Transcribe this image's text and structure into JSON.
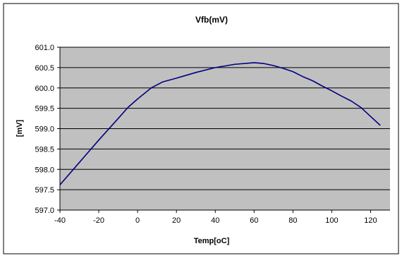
{
  "chart_data": {
    "type": "line",
    "title": "Vfb(mV)",
    "xlabel": "Temp[oC]",
    "ylabel": "[mV]",
    "xlim": [
      -40,
      130
    ],
    "ylim": [
      597.0,
      601.0
    ],
    "xticks": [
      -40,
      -20,
      0,
      20,
      40,
      60,
      80,
      100,
      120
    ],
    "yticks": [
      597.0,
      597.5,
      598.0,
      598.5,
      599.0,
      599.5,
      600.0,
      600.5,
      601.0
    ],
    "xtick_labels": [
      "-40",
      "-20",
      "0",
      "20",
      "40",
      "60",
      "80",
      "100",
      "120"
    ],
    "ytick_labels": [
      "597.0",
      "597.5",
      "598.0",
      "598.5",
      "599.0",
      "599.5",
      "600.0",
      "600.5",
      "601.0"
    ],
    "grid": "horizontal",
    "legend": "none",
    "series": [
      {
        "color": "#000080",
        "x": [
          -40,
          -30,
          -20,
          -10,
          -5,
          0,
          7,
          13,
          20,
          30,
          40,
          50,
          60,
          65,
          70,
          75,
          80,
          85,
          90,
          95,
          100,
          105,
          110,
          115,
          120,
          125
        ],
        "y": [
          597.62,
          598.17,
          598.72,
          599.25,
          599.52,
          599.73,
          600.0,
          600.15,
          600.24,
          600.38,
          600.5,
          600.58,
          600.62,
          600.6,
          600.55,
          600.48,
          600.4,
          600.28,
          600.18,
          600.05,
          599.93,
          599.8,
          599.68,
          599.52,
          599.3,
          599.08
        ]
      }
    ],
    "colors": {
      "background": "#ffffff",
      "plot_area": "#c0c0c0",
      "gridline": "#000000",
      "frame": "#000000"
    }
  }
}
